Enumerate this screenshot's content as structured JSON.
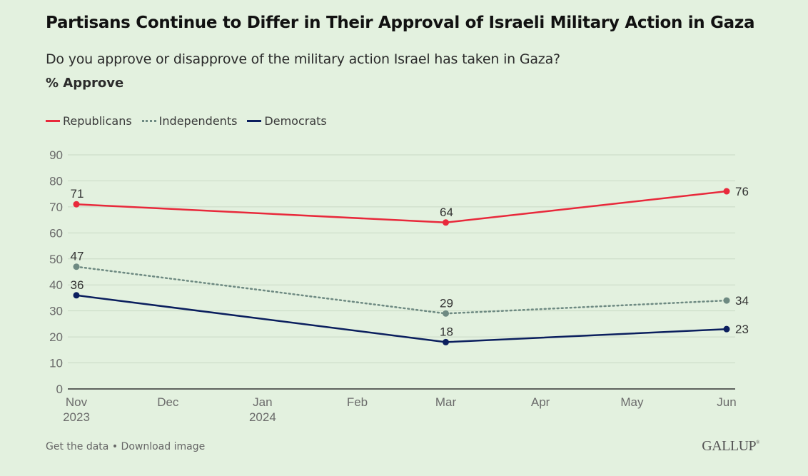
{
  "header": {
    "title": "Partisans Continue to Differ in Their Approval of Israeli Military Action in Gaza",
    "subtitle": "Do you approve or disapprove of the military action Israel has taken in Gaza?",
    "measure": "% Approve"
  },
  "footer": {
    "get_data": "Get the data",
    "separator": " • ",
    "download": "Download image",
    "logo": "GALLUP",
    "logo_mark": "®"
  },
  "chart_data": {
    "type": "line",
    "title": "Partisans Continue to Differ in Their Approval of Israeli Military Action in Gaza",
    "subtitle": "Do you approve or disapprove of the military action Israel has taken in Gaza?",
    "ylabel": "% Approve",
    "xlabel": "",
    "ylim": [
      0,
      90
    ],
    "yticks": [
      0,
      10,
      20,
      30,
      40,
      50,
      60,
      70,
      80,
      90
    ],
    "grid": true,
    "legend": "top-left",
    "x_ticks": [
      {
        "month": 0,
        "label": "Nov",
        "sub": "2023"
      },
      {
        "month": 1,
        "label": "Dec",
        "sub": ""
      },
      {
        "month": 2,
        "label": "Jan",
        "sub": "2024"
      },
      {
        "month": 3,
        "label": "Feb",
        "sub": ""
      },
      {
        "month": 4,
        "label": "Mar",
        "sub": ""
      },
      {
        "month": 5,
        "label": "Apr",
        "sub": ""
      },
      {
        "month": 6,
        "label": "May",
        "sub": ""
      },
      {
        "month": 7,
        "label": "Jun",
        "sub": ""
      }
    ],
    "x": [
      "Nov 2023",
      "Mar 2024",
      "Jun 2024"
    ],
    "x_month_index": [
      0,
      4,
      7
    ],
    "series": [
      {
        "name": "Republicans",
        "color": "#e8293b",
        "style": "solid",
        "values": [
          71,
          64,
          76
        ]
      },
      {
        "name": "Independents",
        "color": "#6e8a82",
        "style": "dotted",
        "values": [
          47,
          29,
          34
        ]
      },
      {
        "name": "Democrats",
        "color": "#0b1f5e",
        "style": "solid",
        "values": [
          36,
          18,
          23
        ]
      }
    ]
  }
}
